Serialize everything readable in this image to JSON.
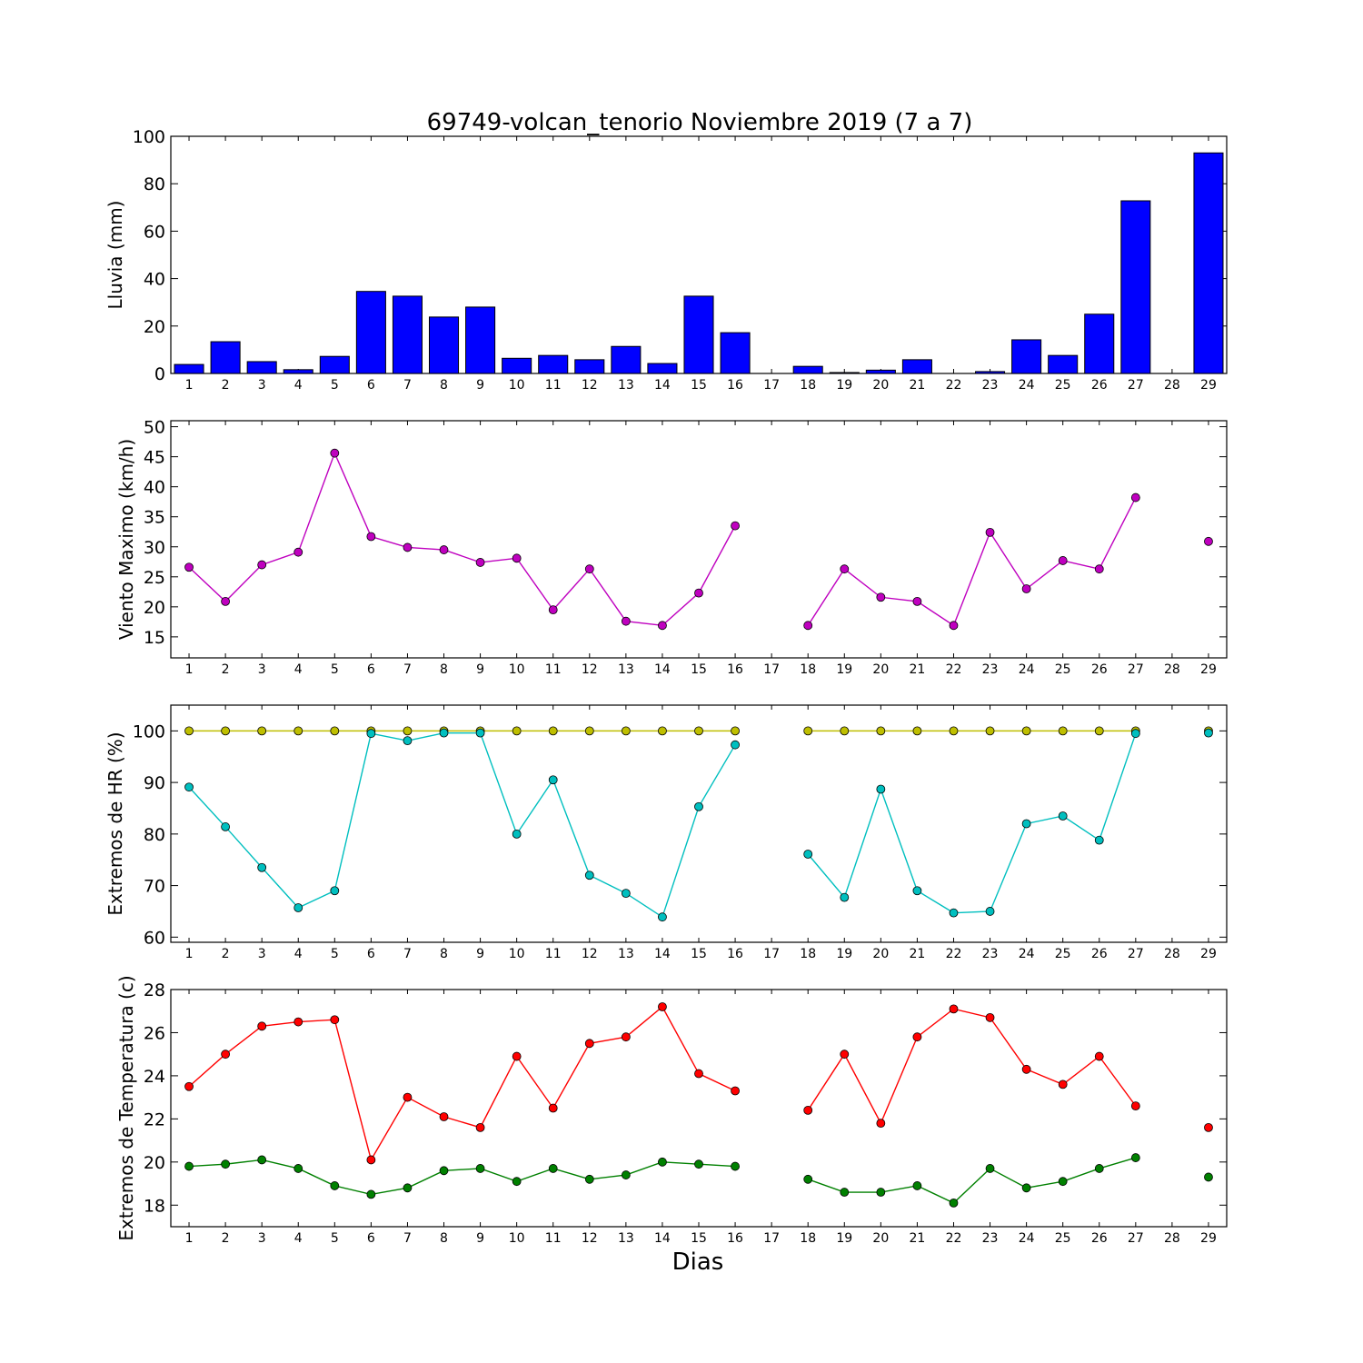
{
  "figure": {
    "title": "69749-volcan_tenorio Noviembre 2019  (7 a 7)",
    "xlabel": "Dias"
  },
  "chart_data": [
    {
      "type": "bar",
      "ylabel": "Lluvia (mm)",
      "ylim": [
        0,
        100
      ],
      "yticks": [
        0,
        20,
        40,
        60,
        80,
        100
      ],
      "categories": [
        1,
        2,
        3,
        4,
        5,
        6,
        7,
        8,
        9,
        10,
        11,
        12,
        13,
        14,
        15,
        16,
        17,
        18,
        19,
        20,
        21,
        22,
        23,
        24,
        25,
        26,
        27,
        28,
        29
      ],
      "values": [
        3.8,
        13.4,
        5.0,
        1.6,
        7.2,
        34.6,
        32.6,
        23.8,
        28.0,
        6.4,
        7.6,
        5.8,
        11.4,
        4.2,
        32.6,
        17.2,
        0,
        3.0,
        0.4,
        1.4,
        5.8,
        0,
        0.8,
        14.2,
        7.6,
        25.0,
        72.8,
        0,
        93.0
      ],
      "color": "#0000ff",
      "grid": false
    },
    {
      "type": "line",
      "ylabel": "Viento Maximo (km/h)",
      "ylim": [
        11.5,
        51
      ],
      "yticks": [
        15,
        20,
        25,
        30,
        35,
        40,
        45,
        50
      ],
      "x": [
        1,
        2,
        3,
        4,
        5,
        6,
        7,
        8,
        9,
        10,
        11,
        12,
        13,
        14,
        15,
        16,
        17,
        18,
        19,
        20,
        21,
        22,
        23,
        24,
        25,
        26,
        27,
        28,
        29
      ],
      "series": [
        {
          "color": "#bf00bf",
          "values": [
            26.6,
            20.9,
            27.0,
            29.1,
            45.6,
            31.7,
            29.9,
            29.5,
            27.4,
            28.1,
            19.5,
            26.3,
            17.6,
            16.9,
            22.3,
            33.5,
            null,
            16.9,
            26.3,
            21.6,
            20.9,
            16.9,
            32.4,
            23.0,
            27.7,
            26.3,
            38.2,
            null,
            30.9
          ]
        }
      ],
      "grid": false
    },
    {
      "type": "line",
      "ylabel": "Extremos de HR (%)",
      "ylim": [
        59,
        105
      ],
      "yticks": [
        60,
        70,
        80,
        90,
        100
      ],
      "x": [
        1,
        2,
        3,
        4,
        5,
        6,
        7,
        8,
        9,
        10,
        11,
        12,
        13,
        14,
        15,
        16,
        17,
        18,
        19,
        20,
        21,
        22,
        23,
        24,
        25,
        26,
        27,
        28,
        29
      ],
      "series": [
        {
          "color": "#bfbf00",
          "values": [
            100,
            100,
            100,
            100,
            100,
            100,
            100,
            100,
            100,
            100,
            100,
            100,
            100,
            100,
            100,
            100,
            null,
            100,
            100,
            100,
            100,
            100,
            100,
            100,
            100,
            100,
            100,
            null,
            100
          ]
        },
        {
          "color": "#00bfbf",
          "values": [
            89.1,
            81.4,
            73.5,
            65.7,
            69.0,
            99.5,
            98.1,
            99.6,
            99.6,
            80.0,
            90.5,
            72.0,
            68.5,
            63.9,
            85.3,
            97.3,
            null,
            76.1,
            67.7,
            88.7,
            69.0,
            64.7,
            65.0,
            82.0,
            83.5,
            78.8,
            99.5,
            null,
            99.6
          ]
        }
      ],
      "grid": false
    },
    {
      "type": "line",
      "ylabel": "Extremos de Temperatura (c)",
      "ylim": [
        17,
        28
      ],
      "yticks": [
        18,
        20,
        22,
        24,
        26,
        28
      ],
      "x": [
        1,
        2,
        3,
        4,
        5,
        6,
        7,
        8,
        9,
        10,
        11,
        12,
        13,
        14,
        15,
        16,
        17,
        18,
        19,
        20,
        21,
        22,
        23,
        24,
        25,
        26,
        27,
        28,
        29
      ],
      "series": [
        {
          "color": "#ff0000",
          "values": [
            23.5,
            25.0,
            26.3,
            26.5,
            26.6,
            20.1,
            23.0,
            22.1,
            21.6,
            24.9,
            22.5,
            25.5,
            25.8,
            27.2,
            24.1,
            23.3,
            null,
            22.4,
            25.0,
            21.8,
            25.8,
            27.1,
            26.7,
            24.3,
            23.6,
            24.9,
            22.6,
            null,
            21.6
          ]
        },
        {
          "color": "#008000",
          "values": [
            19.8,
            19.9,
            20.1,
            19.7,
            18.9,
            18.5,
            18.8,
            19.6,
            19.7,
            19.1,
            19.7,
            19.2,
            19.4,
            20.0,
            19.9,
            19.8,
            null,
            19.2,
            18.6,
            18.6,
            18.9,
            18.1,
            19.7,
            18.8,
            19.1,
            19.7,
            20.2,
            null,
            19.3
          ]
        }
      ],
      "grid": false
    }
  ]
}
